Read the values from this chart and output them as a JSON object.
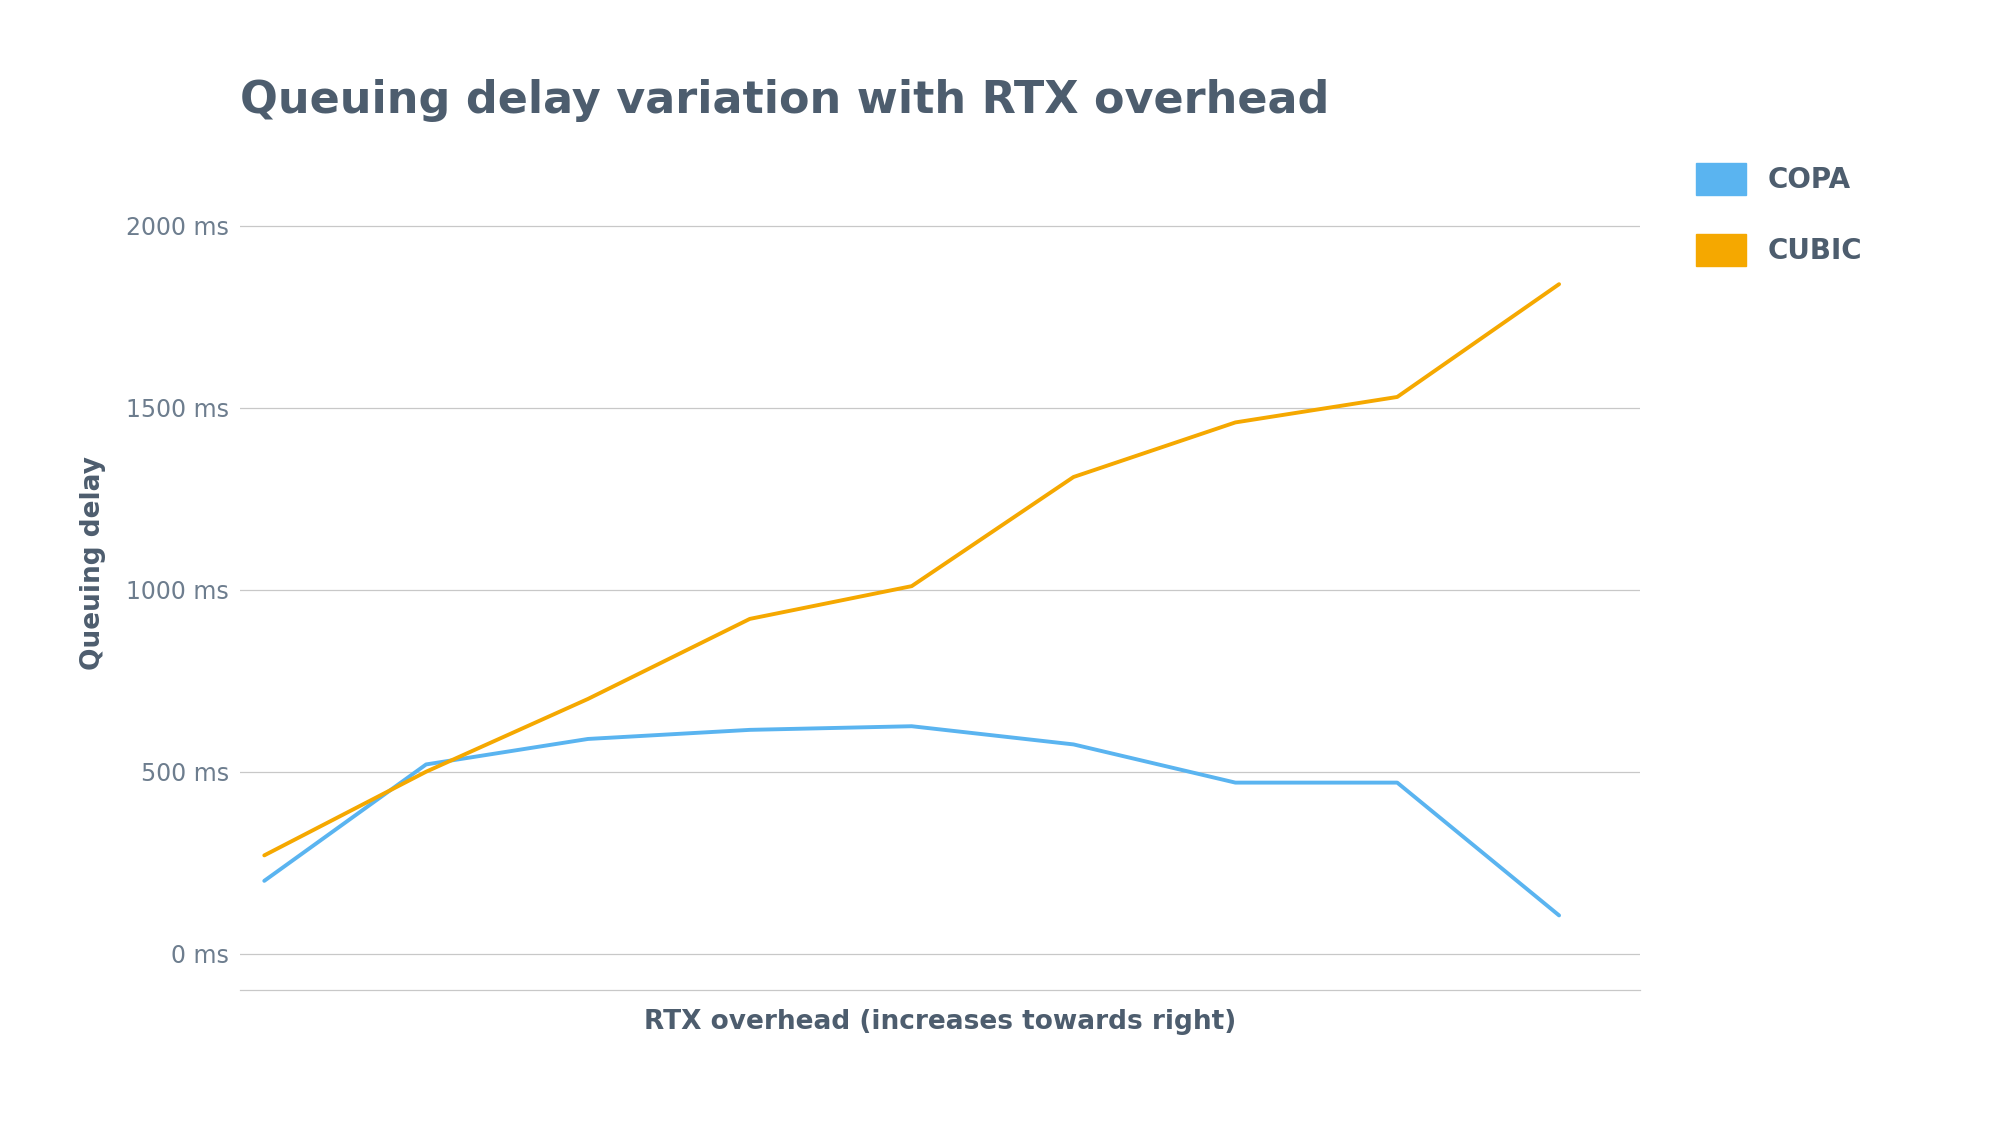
{
  "title": "Queuing delay variation with RTX overhead",
  "xlabel": "RTX overhead (increases towards right)",
  "ylabel": "Queuing delay",
  "background_color": "#ffffff",
  "title_color": "#4d5d6e",
  "axis_label_color": "#4d5d6e",
  "tick_label_color": "#6d7d8e",
  "grid_color": "#c8c8c8",
  "copa_color": "#5ab4f0",
  "cubic_color": "#f5a800",
  "line_width": 2.8,
  "copa_x": [
    0,
    1,
    2,
    3,
    4,
    5,
    6,
    7,
    8
  ],
  "copa_y": [
    200,
    520,
    590,
    615,
    625,
    575,
    470,
    470,
    105
  ],
  "cubic_x": [
    0,
    1,
    2,
    3,
    4,
    5,
    6,
    7,
    8
  ],
  "cubic_y": [
    270,
    500,
    700,
    920,
    1010,
    1310,
    1460,
    1530,
    1840
  ],
  "yticks": [
    0,
    500,
    1000,
    1500,
    2000
  ],
  "ytick_labels": [
    "0 ms",
    "500 ms",
    "1000 ms",
    "1500 ms",
    "2000 ms"
  ],
  "ylim": [
    -100,
    2250
  ],
  "xlim": [
    -0.15,
    8.5
  ],
  "legend_labels": [
    "COPA",
    "CUBIC"
  ],
  "title_fontsize": 32,
  "axis_label_fontsize": 19,
  "tick_fontsize": 17,
  "legend_fontsize": 20
}
